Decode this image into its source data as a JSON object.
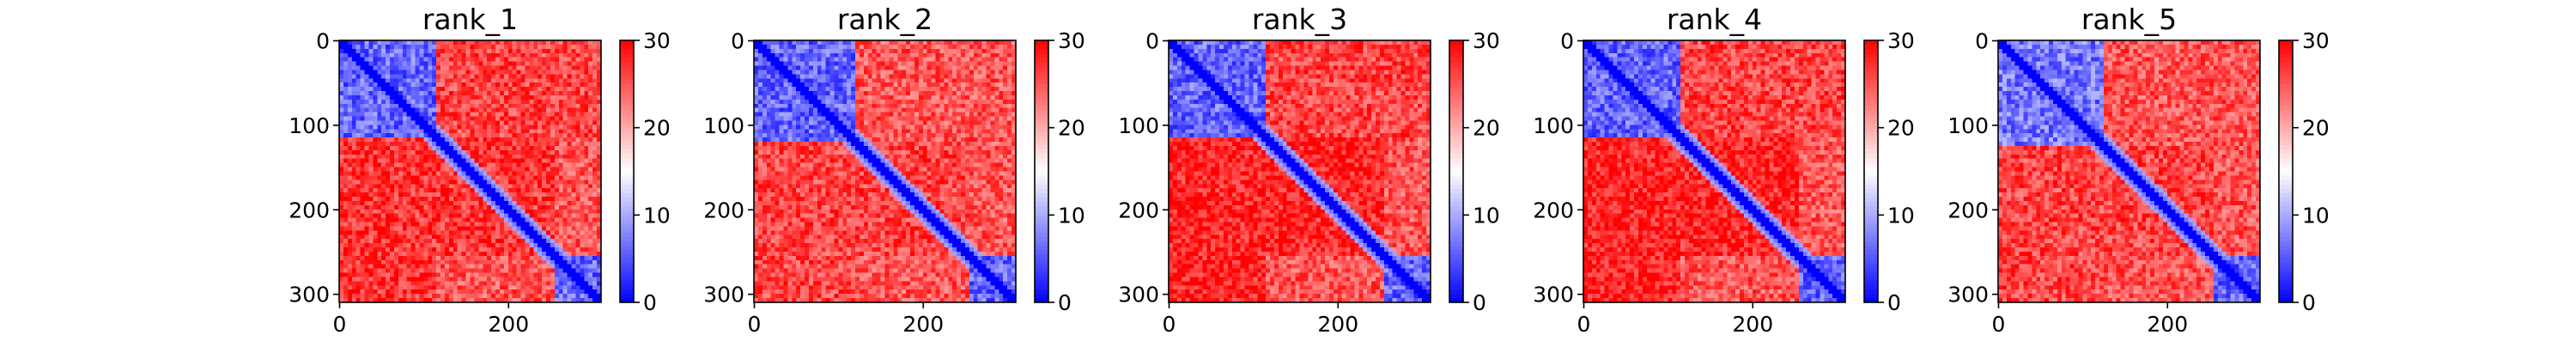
{
  "chart_data": [
    {
      "type": "heatmap",
      "title": "rank_1",
      "matrix_size": 310,
      "xticks": [
        "0",
        "200"
      ],
      "yticks": [
        "0",
        "100",
        "200",
        "300"
      ],
      "colorbar": {
        "range": [
          0,
          30
        ],
        "ticks": [
          "0",
          "10",
          "20",
          "30"
        ]
      },
      "colormap": [
        "#0000ff",
        "#ffffff",
        "#ff0000"
      ],
      "regions": [
        {
          "rows": [
            0,
            115
          ],
          "cols": [
            0,
            115
          ],
          "value": 6
        },
        {
          "rows": [
            0,
            115
          ],
          "cols": [
            115,
            310
          ],
          "value": 26
        },
        {
          "rows": [
            115,
            310
          ],
          "cols": [
            0,
            115
          ],
          "value": 27
        },
        {
          "rows": [
            135,
            165
          ],
          "cols": [
            135,
            165
          ],
          "value": 6
        },
        {
          "rows": [
            115,
            255
          ],
          "cols": [
            115,
            255
          ],
          "value": 27
        },
        {
          "rows": [
            255,
            310
          ],
          "cols": [
            255,
            310
          ],
          "value": 6
        }
      ]
    },
    {
      "type": "heatmap",
      "title": "rank_2",
      "matrix_size": 310,
      "xticks": [
        "0",
        "200"
      ],
      "yticks": [
        "0",
        "100",
        "200",
        "300"
      ],
      "colorbar": {
        "range": [
          0,
          30
        ],
        "ticks": [
          "0",
          "10",
          "20",
          "30"
        ]
      },
      "colormap": [
        "#0000ff",
        "#ffffff",
        "#ff0000"
      ],
      "regions": [
        {
          "rows": [
            0,
            120
          ],
          "cols": [
            0,
            120
          ],
          "value": 6
        },
        {
          "rows": [
            0,
            120
          ],
          "cols": [
            120,
            310
          ],
          "value": 25
        },
        {
          "rows": [
            120,
            310
          ],
          "cols": [
            0,
            120
          ],
          "value": 26
        },
        {
          "rows": [
            140,
            170
          ],
          "cols": [
            140,
            170
          ],
          "value": 6
        },
        {
          "rows": [
            120,
            255
          ],
          "cols": [
            120,
            255
          ],
          "value": 26
        },
        {
          "rows": [
            255,
            310
          ],
          "cols": [
            255,
            310
          ],
          "value": 6
        }
      ]
    },
    {
      "type": "heatmap",
      "title": "rank_3",
      "matrix_size": 310,
      "xticks": [
        "0",
        "200"
      ],
      "yticks": [
        "0",
        "100",
        "200",
        "300"
      ],
      "colorbar": {
        "range": [
          0,
          30
        ],
        "ticks": [
          "0",
          "10",
          "20",
          "30"
        ]
      },
      "colormap": [
        "#0000ff",
        "#ffffff",
        "#ff0000"
      ],
      "regions": [
        {
          "rows": [
            0,
            115
          ],
          "cols": [
            0,
            115
          ],
          "value": 6
        },
        {
          "rows": [
            0,
            115
          ],
          "cols": [
            115,
            310
          ],
          "value": 26
        },
        {
          "rows": [
            115,
            310
          ],
          "cols": [
            0,
            115
          ],
          "value": 28
        },
        {
          "rows": [
            135,
            165
          ],
          "cols": [
            135,
            165
          ],
          "value": 6
        },
        {
          "rows": [
            115,
            255
          ],
          "cols": [
            115,
            255
          ],
          "value": 28
        },
        {
          "rows": [
            255,
            310
          ],
          "cols": [
            255,
            310
          ],
          "value": 6
        }
      ]
    },
    {
      "type": "heatmap",
      "title": "rank_4",
      "matrix_size": 310,
      "xticks": [
        "0",
        "200"
      ],
      "yticks": [
        "0",
        "100",
        "200",
        "300"
      ],
      "colorbar": {
        "range": [
          0,
          30
        ],
        "ticks": [
          "0",
          "10",
          "20",
          "30"
        ]
      },
      "colormap": [
        "#0000ff",
        "#ffffff",
        "#ff0000"
      ],
      "regions": [
        {
          "rows": [
            0,
            115
          ],
          "cols": [
            0,
            115
          ],
          "value": 6
        },
        {
          "rows": [
            0,
            115
          ],
          "cols": [
            115,
            310
          ],
          "value": 26
        },
        {
          "rows": [
            115,
            310
          ],
          "cols": [
            0,
            115
          ],
          "value": 28
        },
        {
          "rows": [
            135,
            165
          ],
          "cols": [
            135,
            165
          ],
          "value": 6
        },
        {
          "rows": [
            115,
            255
          ],
          "cols": [
            115,
            255
          ],
          "value": 28
        },
        {
          "rows": [
            255,
            310
          ],
          "cols": [
            255,
            310
          ],
          "value": 6
        }
      ]
    },
    {
      "type": "heatmap",
      "title": "rank_5",
      "matrix_size": 310,
      "xticks": [
        "0",
        "200"
      ],
      "yticks": [
        "0",
        "100",
        "200",
        "300"
      ],
      "colorbar": {
        "range": [
          0,
          30
        ],
        "ticks": [
          "0",
          "10",
          "20",
          "30"
        ]
      },
      "colormap": [
        "#0000ff",
        "#ffffff",
        "#ff0000"
      ],
      "regions": [
        {
          "rows": [
            0,
            125
          ],
          "cols": [
            0,
            125
          ],
          "value": 7
        },
        {
          "rows": [
            0,
            125
          ],
          "cols": [
            125,
            310
          ],
          "value": 25
        },
        {
          "rows": [
            125,
            310
          ],
          "cols": [
            0,
            125
          ],
          "value": 26
        },
        {
          "rows": [
            145,
            170
          ],
          "cols": [
            145,
            170
          ],
          "value": 6
        },
        {
          "rows": [
            125,
            255
          ],
          "cols": [
            125,
            255
          ],
          "value": 26
        },
        {
          "rows": [
            255,
            310
          ],
          "cols": [
            255,
            310
          ],
          "value": 6
        }
      ]
    }
  ]
}
